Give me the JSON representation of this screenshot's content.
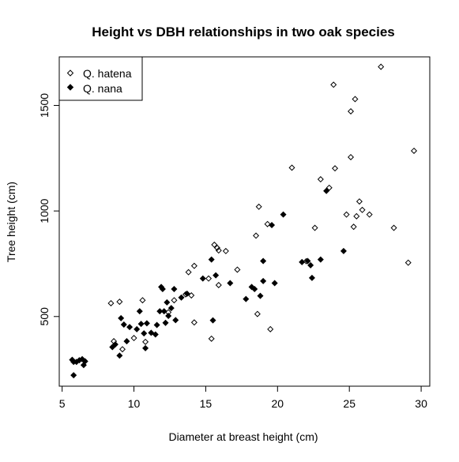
{
  "chart_data": {
    "type": "scatter",
    "title": "Height vs DBH relationships in two oak species",
    "xlabel": "Diameter at breast height (cm)",
    "ylabel": "Tree height (cm)",
    "xlim": [
      4.8,
      30.6
    ],
    "ylim": [
      170,
      1730
    ],
    "xticks": [
      5,
      10,
      15,
      20,
      25,
      30
    ],
    "yticks": [
      500,
      1000,
      1500
    ],
    "xtick_labels": [
      "5",
      "10",
      "15",
      "20",
      "25",
      "30"
    ],
    "ytick_labels": [
      "500",
      "1000",
      "1500"
    ],
    "grid": false,
    "legend_position": "top-left",
    "series": [
      {
        "name": "Q. hatena",
        "marker": "open-diamond",
        "color": "#000000",
        "points": [
          [
            8.4,
            563
          ],
          [
            9.0,
            570
          ],
          [
            10.6,
            577
          ],
          [
            10.8,
            380
          ],
          [
            8.6,
            383
          ],
          [
            9.2,
            345
          ],
          [
            10.0,
            398
          ],
          [
            12.8,
            577
          ],
          [
            12.4,
            520
          ],
          [
            13.8,
            710
          ],
          [
            14.2,
            740
          ],
          [
            14.0,
            600
          ],
          [
            14.2,
            472
          ],
          [
            13.6,
            605
          ],
          [
            15.2,
            680
          ],
          [
            15.4,
            395
          ],
          [
            15.6,
            840
          ],
          [
            15.8,
            825
          ],
          [
            15.9,
            813
          ],
          [
            16.4,
            810
          ],
          [
            17.2,
            722
          ],
          [
            15.9,
            649
          ],
          [
            18.5,
            883
          ],
          [
            18.7,
            1020
          ],
          [
            18.6,
            512
          ],
          [
            19.3,
            938
          ],
          [
            19.5,
            440
          ],
          [
            21.0,
            1205
          ],
          [
            22.0,
            762
          ],
          [
            22.6,
            920
          ],
          [
            23.0,
            1150
          ],
          [
            23.6,
            1110
          ],
          [
            24.0,
            1202
          ],
          [
            23.9,
            1598
          ],
          [
            24.8,
            983
          ],
          [
            25.1,
            1472
          ],
          [
            25.1,
            1255
          ],
          [
            25.4,
            1530
          ],
          [
            25.5,
            975
          ],
          [
            25.3,
            925
          ],
          [
            25.7,
            1045
          ],
          [
            25.9,
            1005
          ],
          [
            26.4,
            983
          ],
          [
            27.2,
            1683
          ],
          [
            28.1,
            920
          ],
          [
            29.1,
            755
          ],
          [
            29.5,
            1285
          ]
        ]
      },
      {
        "name": "Q. nana",
        "marker": "filled-diamond",
        "color": "#000000",
        "points": [
          [
            5.7,
            295
          ],
          [
            5.8,
            285
          ],
          [
            5.8,
            222
          ],
          [
            6.0,
            285
          ],
          [
            6.2,
            293
          ],
          [
            6.4,
            298
          ],
          [
            6.5,
            270
          ],
          [
            6.6,
            288
          ],
          [
            8.5,
            355
          ],
          [
            8.7,
            368
          ],
          [
            9.0,
            315
          ],
          [
            9.1,
            492
          ],
          [
            9.3,
            462
          ],
          [
            9.5,
            383
          ],
          [
            9.7,
            450
          ],
          [
            10.2,
            440
          ],
          [
            10.4,
            525
          ],
          [
            10.5,
            465
          ],
          [
            10.7,
            420
          ],
          [
            10.8,
            350
          ],
          [
            10.9,
            468
          ],
          [
            11.2,
            423
          ],
          [
            11.5,
            415
          ],
          [
            11.6,
            460
          ],
          [
            11.8,
            525
          ],
          [
            11.9,
            640
          ],
          [
            12.0,
            630
          ],
          [
            12.1,
            525
          ],
          [
            12.2,
            470
          ],
          [
            12.3,
            567
          ],
          [
            12.4,
            503
          ],
          [
            12.6,
            540
          ],
          [
            12.8,
            630
          ],
          [
            12.9,
            483
          ],
          [
            13.3,
            590
          ],
          [
            13.7,
            608
          ],
          [
            14.8,
            680
          ],
          [
            15.4,
            770
          ],
          [
            15.5,
            482
          ],
          [
            15.7,
            695
          ],
          [
            16.7,
            658
          ],
          [
            17.8,
            583
          ],
          [
            18.2,
            640
          ],
          [
            18.4,
            630
          ],
          [
            18.8,
            598
          ],
          [
            19.0,
            668
          ],
          [
            19.0,
            763
          ],
          [
            19.6,
            933
          ],
          [
            19.8,
            658
          ],
          [
            20.4,
            983
          ],
          [
            21.7,
            758
          ],
          [
            22.1,
            763
          ],
          [
            22.3,
            743
          ],
          [
            22.4,
            683
          ],
          [
            23.0,
            770
          ],
          [
            23.4,
            1095
          ],
          [
            24.6,
            810
          ]
        ]
      }
    ]
  }
}
